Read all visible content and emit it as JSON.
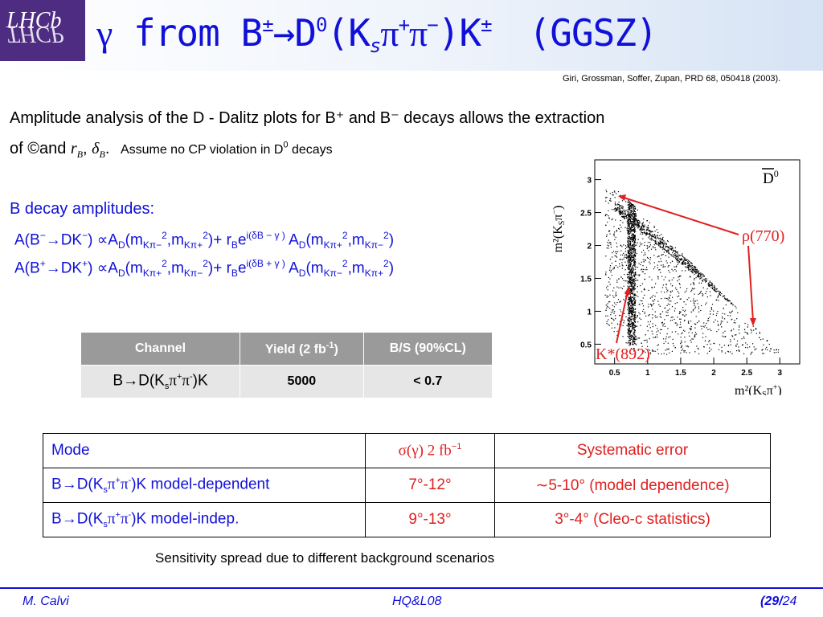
{
  "header": {
    "logo_top": "LHCb",
    "logo_bottom": "THCP",
    "title_gamma": "γ",
    "title_from": " from B",
    "title_pm": "±",
    "title_arrow": "→D",
    "title_zero": "0",
    "title_k": "(K",
    "title_s": "s",
    "title_pi_plus": "π",
    "title_plus": "+",
    "title_pi_minus": "π",
    "title_minus": "−",
    "title_tail": ")K",
    "title_pm2": "±",
    "title_ggsz": "(GGSZ)",
    "reference": "Giri, Grossman, Soffer, Zupan, PRD 68, 050418 (2003)."
  },
  "body": {
    "para1": "Amplitude analysis of the D - Dalitz plots for B⁺ and B⁻ decays allows the extraction",
    "para2_of": "of ©and ",
    "para2_rb": "r",
    "para2_rb_sub": "B",
    "para2_comma": ", ",
    "para2_delta": "δ",
    "para2_delta_sub": "B",
    "para2_dot": ".",
    "para2_assume": "Assume no CP violation in D",
    "para2_d0": "0",
    "para2_decays": " decays",
    "amplitudes_title": "B decay amplitudes:",
    "amp1_parts": [
      "A(B",
      "−",
      "→DK",
      "−",
      ") ∝A",
      "D",
      "(m",
      "Kπ−",
      "2",
      ",m",
      "Kπ+",
      "2",
      ")+ r",
      "B",
      "e",
      "i(δB − γ )",
      " A",
      "D",
      "(m",
      "Kπ+",
      "2",
      ",m",
      "Kπ−",
      "2",
      ")"
    ],
    "amp2_parts": [
      "A(B",
      "+",
      "→DK",
      "+",
      ") ∝A",
      "D",
      "(m",
      "Kπ+",
      "2",
      ",m",
      "Kπ−",
      "2",
      ")+ r",
      "B",
      "e",
      "i(δB + γ )",
      " A",
      "D",
      "(m",
      "Kπ−",
      "2",
      ",m",
      "Kπ+",
      "2",
      ")"
    ],
    "sensitivity_note": "Sensitivity spread due to different background scenarios"
  },
  "table1": {
    "headers": [
      "Channel",
      "Yield (2 fb",
      "-1",
      ")",
      "B/S (90%CL)"
    ],
    "row_channel": [
      "B",
      "→",
      "D(K",
      "s",
      "π",
      "+",
      "π",
      "-",
      ")K"
    ],
    "row_yield": "5000",
    "row_bs": "< 0.7"
  },
  "table2": {
    "header_mode": "Mode",
    "header_sigma": "σ(γ)  2 fb",
    "header_sigma_sup": "−1",
    "header_syst": "Systematic error",
    "rows": [
      {
        "mode_pre": "B",
        "mode_arrow": "→",
        "mode_d": "D(K",
        "mode_s": "s",
        "mode_pi": "π",
        "mode_plus": "+",
        "mode_pi2": "π",
        "mode_minus": "-",
        "mode_post": ")K model-dependent",
        "sigma": "7°-12°",
        "syst": "∼5-10° (model dependence)"
      },
      {
        "mode_pre": "B",
        "mode_arrow": "→",
        "mode_d": "D(K",
        "mode_s": "s",
        "mode_pi": "π",
        "mode_plus": "+",
        "mode_pi2": "π",
        "mode_minus": "-",
        "mode_post": ")K model-indep.",
        "sigma": "9°-13°",
        "syst": "3°-4° (Cleo-c statistics)"
      }
    ]
  },
  "plot": {
    "ylabel": "m²(K",
    "ylabel_s": "S",
    "ylabel_pi": "π",
    "ylabel_charge": "−",
    "ylabel_close": ")",
    "xlabel": "m²(K",
    "xlabel_s": "S",
    "xlabel_pi": "π",
    "xlabel_charge": "+",
    "xlabel_close": ")",
    "dbar_label": "D",
    "dbar_sup": "0",
    "rho_label": "ρ(770)",
    "kstar_label": "K*(892)",
    "x_ticks": [
      "0.5",
      "1",
      "1.5",
      "2",
      "2.5",
      "3"
    ],
    "y_ticks": [
      "0.5",
      "1",
      "1.5",
      "2",
      "2.5",
      "3"
    ],
    "arrow_color": "#e02020",
    "marker_color": "#000000"
  },
  "footer": {
    "author": "M. Calvi",
    "conference": "HQ&L08",
    "page_open": "(",
    "page_current": "29",
    "page_sep": "/",
    "page_total": "24"
  }
}
